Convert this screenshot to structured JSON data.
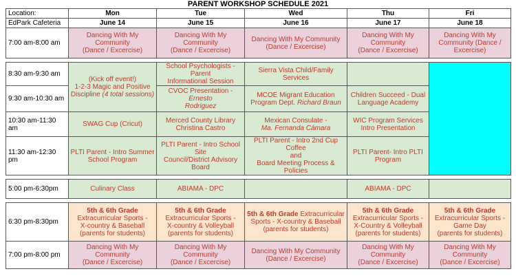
{
  "title": "PARENT WORKSHOP SCHEDULE 2021",
  "header": {
    "location_label": "Location:",
    "location_value": "EdPark Cafeteria",
    "days": [
      "Mon",
      "Tue",
      "Wed",
      "Thu",
      "Fri"
    ],
    "dates": [
      "June 14",
      "June 15",
      "June 16",
      "June 17",
      "June 18"
    ]
  },
  "times": {
    "t1": "7:00 am-8:00 am",
    "t2": "8:30 am-9:30 am",
    "t3": "9:30 am-10:30 am",
    "t4": "10:30 am-11:30 am",
    "t5": "11:30 am-12:30 pm",
    "t6": "5:00 pm-6:30pm",
    "t7": "6:30 pm-8:30pm",
    "t8": "7:00 pm-8:00 pm"
  },
  "dancing": {
    "line1": "Dancing With My Community",
    "line2": "(Dance / Excercise)"
  },
  "fri_dancing_am": "Dancing With My Community (Dance / Excercise)",
  "fri_dancing_pm": {
    "line1": "Dancing With My",
    "line2": "Community",
    "line3": "(Dance / Excercise)"
  },
  "mon": {
    "kickoff": {
      "line1": "(Kick off event!)",
      "line2": "1-2-3 Magic and Positive",
      "line3": "Discipline",
      "italic": "(4 total sessions)"
    },
    "swag": "SWAG Cup (Cricut)",
    "pltis": {
      "line1": "PLTI  Parent - Intro Summer",
      "line2": "School Program"
    },
    "culinary": "Culinary Class"
  },
  "tue": {
    "psych": {
      "line1": "School Psychologists - Parent",
      "line2": "Informational  Session"
    },
    "cvoc": {
      "text": "CVOC Presentation - ",
      "italic1": "Ernesto",
      "italic2": "Rodriguez"
    },
    "library": {
      "line1": "Merced County Library",
      "line2": "Christina Castro"
    },
    "plti": {
      "line1": "PLTI Parent - Intro School Site",
      "line2": "Council/District Advisory",
      "line3": "Board"
    },
    "abiama": "ABIAMA - DPC"
  },
  "wed": {
    "sierra": "Sierra Vista Child/Family Services",
    "mcoe": {
      "line1": "MCOE Migrant Education",
      "line2": "Program Dept. ",
      "italic": "Richard Braun"
    },
    "consulate": {
      "line1": "Mexican Consulate -",
      "italic": "Ma. Fernanda Cámara"
    },
    "plti": {
      "line1": "PLTI Parent - Intro 2nd Cup Coffee",
      "line2": "and",
      "line3": "Board Meeting Process & Policies"
    }
  },
  "thu": {
    "children": {
      "line1": "Children Succeed - Dual",
      "line2": "Language Academy"
    },
    "wic": {
      "line1": "WIC Program Services",
      "line2": "Intro Presentation"
    },
    "plti": {
      "line1": "PLTI Parent- Intro PLTI",
      "line2": "Program"
    },
    "abiama": "ABIAMA - DPC"
  },
  "sports": {
    "grade": "5th & 6th Grade",
    "mon": {
      "line2": "Extracurricular Sports -",
      "line3": "X-country & Baseball",
      "line4": "(parents for students)"
    },
    "tue": {
      "line2": "Extracurricular Sports -",
      "line3": "X-country & Volleyball",
      "line4": "(parents for students)"
    },
    "wed": {
      "line1rest": " Extracurricular",
      "line2": "Sports - X-country & Baseball",
      "line3": "(parents for students)"
    },
    "thu": {
      "line2": "Extracurricular Sports -",
      "line3": "X-Country & Volleyball",
      "line4": "(parents for students)"
    },
    "fri": {
      "line2": "Extracurricular Sports -",
      "line3": "Game Day",
      "line4": "(parents for students)"
    }
  }
}
